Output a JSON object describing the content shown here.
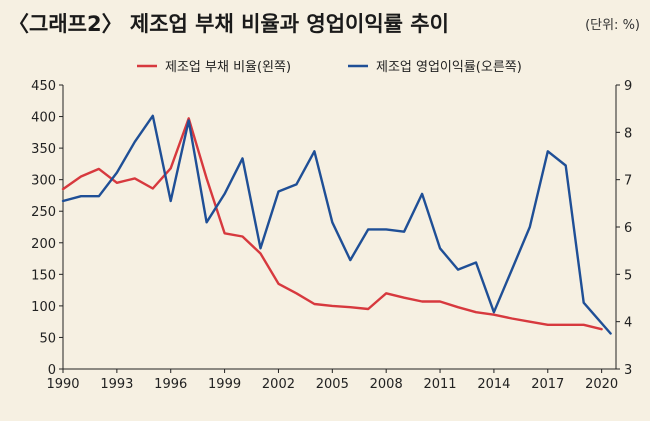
{
  "chart_data": {
    "type": "line",
    "title": "〈그래프2〉 제조업 부채 비율과 영업이익률 추이",
    "unit": "(단위: %)",
    "x": [
      1990,
      1991,
      1992,
      1993,
      1994,
      1995,
      1996,
      1997,
      1998,
      1999,
      2000,
      2001,
      2002,
      2003,
      2004,
      2005,
      2006,
      2007,
      2008,
      2009,
      2010,
      2011,
      2012,
      2013,
      2014,
      2015,
      2016,
      2017,
      2018,
      2019,
      2020
    ],
    "x_ticks": [
      1990,
      1993,
      1996,
      1999,
      2002,
      2005,
      2008,
      2011,
      2014,
      2017,
      2020
    ],
    "xlim": [
      1990,
      2020.8
    ],
    "ylim_left": [
      0,
      450
    ],
    "y_ticks_left": [
      0,
      50,
      100,
      150,
      200,
      250,
      300,
      350,
      400,
      450
    ],
    "ylim_right": [
      3,
      9
    ],
    "y_ticks_right": [
      3,
      4,
      5,
      6,
      7,
      8,
      9
    ],
    "grid": false,
    "legend_position": "top",
    "series": [
      {
        "name": "제조업 부채 비율(왼쪽)",
        "axis": "left",
        "color": "#d7393e",
        "x": [
          1990,
          1991,
          1992,
          1993,
          1994,
          1995,
          1996,
          1997,
          1998,
          1999,
          2000,
          2001,
          2002,
          2003,
          2004,
          2005,
          2006,
          2007,
          2008,
          2009,
          2010,
          2011,
          2012,
          2013,
          2014,
          2015,
          2016,
          2017,
          2018,
          2019,
          2020
        ],
        "values": [
          285,
          305,
          317,
          295,
          302,
          286,
          318,
          397,
          302,
          215,
          210,
          183,
          135,
          120,
          103,
          100,
          98,
          95,
          120,
          113,
          107,
          107,
          98,
          90,
          86,
          80,
          75,
          70,
          70,
          70,
          63
        ]
      },
      {
        "name": "제조업 영업이익률(오른쪽)",
        "axis": "right",
        "color": "#1f4f96",
        "x": [
          1990,
          1991,
          1992,
          1993,
          1994,
          1995,
          1996,
          1997,
          1998,
          1999,
          2000,
          2001,
          2002,
          2003,
          2004,
          2005,
          2006,
          2007,
          2008,
          2009,
          2010,
          2011,
          2012,
          2013,
          2014,
          2015,
          2016,
          2017,
          2018,
          2019,
          2020.5
        ],
        "values": [
          6.55,
          6.65,
          6.65,
          7.15,
          7.8,
          8.35,
          6.55,
          8.25,
          6.1,
          6.7,
          7.45,
          5.55,
          6.75,
          6.9,
          7.6,
          6.1,
          5.3,
          5.95,
          5.95,
          5.9,
          6.7,
          5.55,
          5.1,
          5.25,
          4.2,
          5.1,
          6.0,
          7.6,
          7.3,
          4.4,
          3.75
        ]
      }
    ]
  }
}
